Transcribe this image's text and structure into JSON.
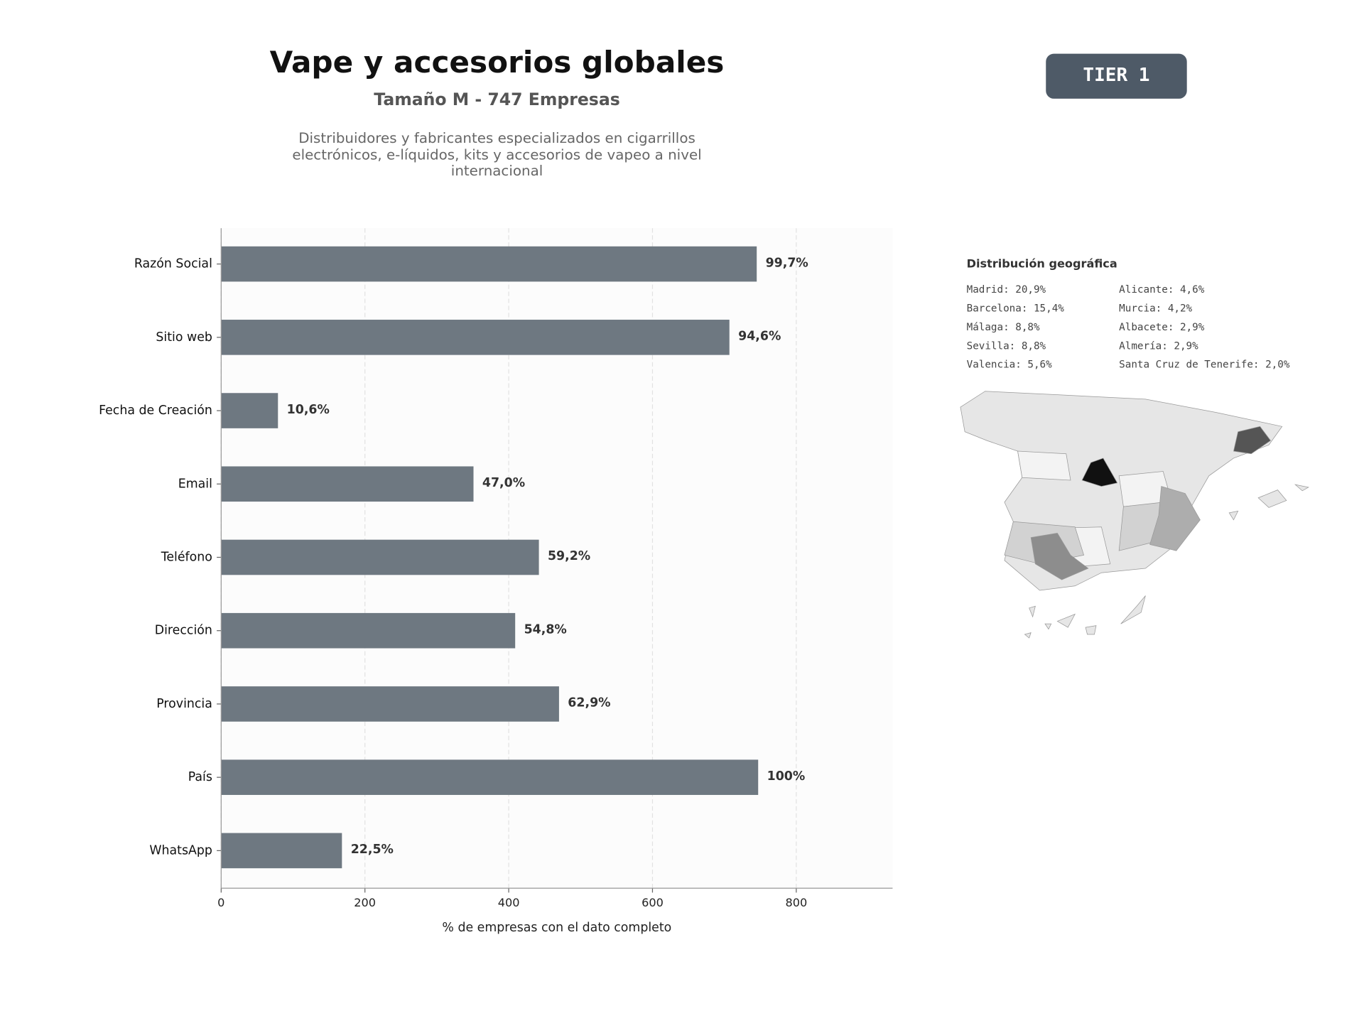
{
  "chart_data": {
    "type": "bar",
    "orientation": "horizontal",
    "title": "Vape y accesorios globales",
    "subtitle": "Tamaño M - 747 Empresas",
    "description": "Distribuidores y fabricantes especializados en cigarrillos electrónicos, e-líquidos, kits y accesorios de vapeo a nivel internacional",
    "badge": "TIER 1",
    "xlabel": "% de empresas con el dato completo",
    "categories": [
      "Razón Social",
      "Sitio web",
      "Fecha de Creación",
      "Email",
      "Teléfono",
      "Dirección",
      "Provincia",
      "País",
      "WhatsApp"
    ],
    "values": [
      745,
      707,
      79,
      351,
      442,
      409,
      470,
      747,
      168
    ],
    "value_labels": [
      "99,7%",
      "94,6%",
      "10,6%",
      "47,0%",
      "59,2%",
      "54,8%",
      "62,9%",
      "100%",
      "22,5%"
    ],
    "color": "#6e7881",
    "xlim": [
      0,
      934
    ],
    "xticks": [
      0,
      200,
      400,
      600,
      800
    ],
    "grid": true
  },
  "geo": {
    "title": "Distribución geográfica",
    "items": [
      "Madrid: 20,9%",
      "Barcelona: 15,4%",
      "Málaga: 8,8%",
      "Sevilla: 8,8%",
      "Valencia: 5,6%",
      "Alicante: 4,6%",
      "Murcia: 4,2%",
      "Albacete: 2,9%",
      "Almería: 2,9%",
      "Santa Cruz de Tenerife: 2,0%"
    ]
  }
}
